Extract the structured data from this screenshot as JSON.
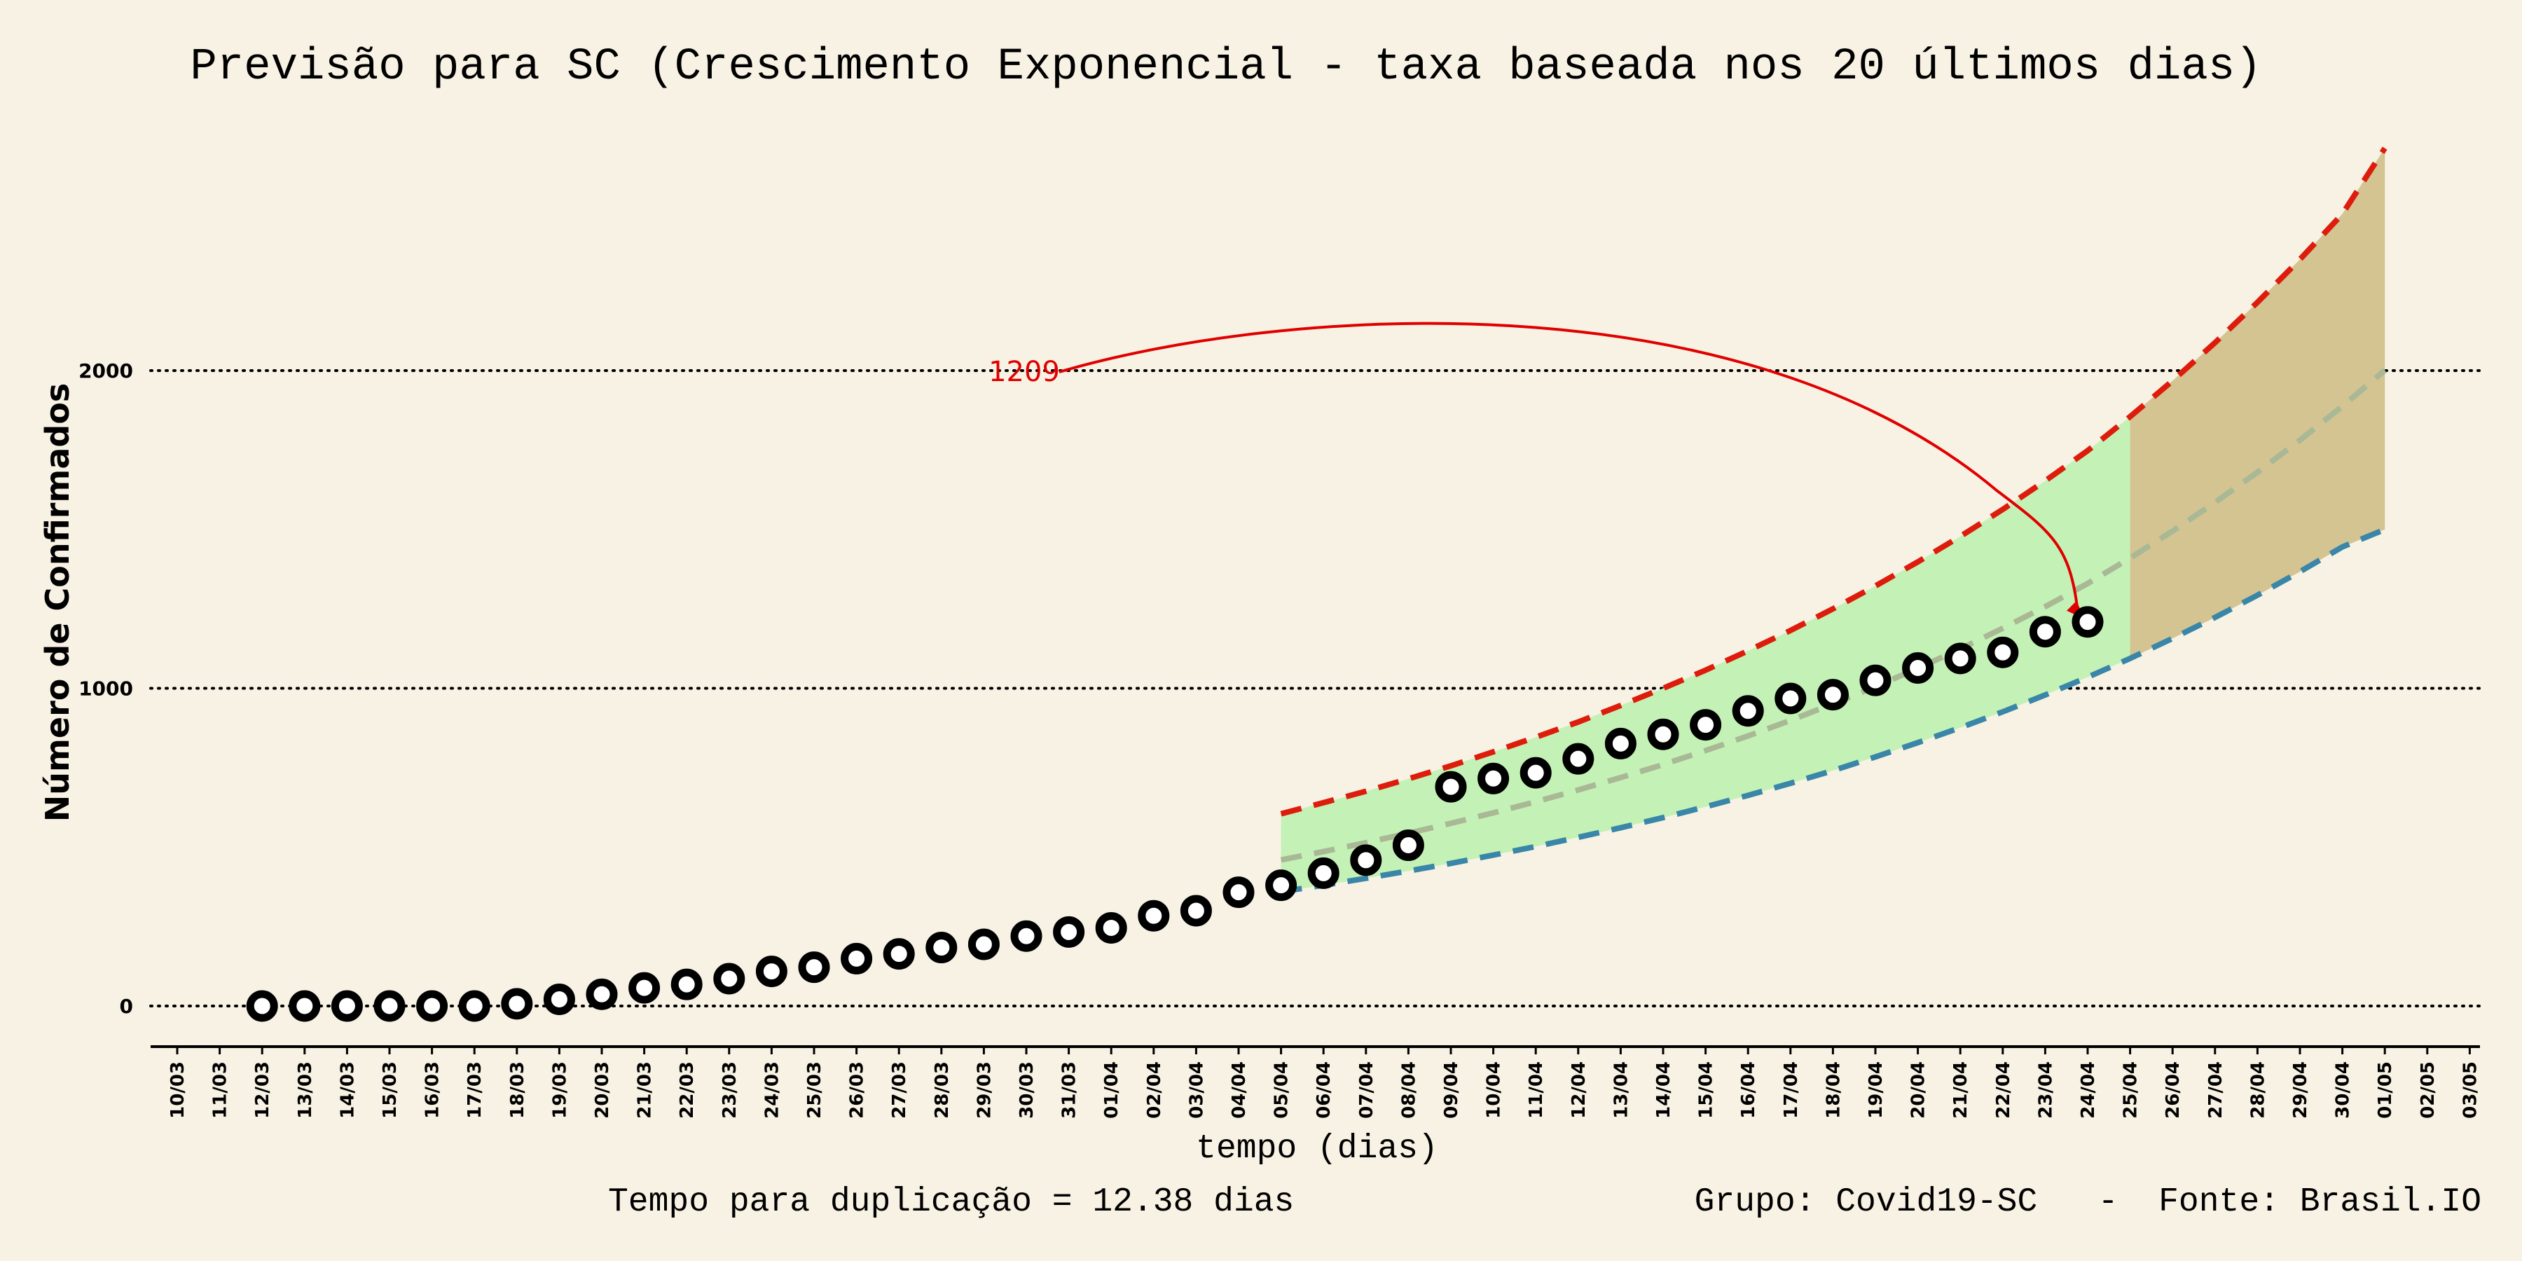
{
  "chart_data": {
    "type": "line",
    "title": "Previsão para SC (Crescimento Exponencial - taxa baseada nos 20 últimos dias)",
    "xlabel": "tempo (dias)",
    "ylabel": "Número de Confirmados",
    "footer_left": "Tempo para duplicação = 12.38 dias",
    "footer_right": "Grupo: Covid19-SC   -  Fonte: Brasil.IO",
    "x_tick_labels": [
      "10/03",
      "11/03",
      "12/03",
      "13/03",
      "14/03",
      "15/03",
      "16/03",
      "17/03",
      "18/03",
      "19/03",
      "20/03",
      "21/03",
      "22/03",
      "23/03",
      "24/03",
      "25/03",
      "26/03",
      "27/03",
      "28/03",
      "29/03",
      "30/03",
      "31/03",
      "01/04",
      "02/04",
      "03/04",
      "04/04",
      "05/04",
      "06/04",
      "07/04",
      "08/04",
      "09/04",
      "10/04",
      "11/04",
      "12/04",
      "13/04",
      "14/04",
      "15/04",
      "16/04",
      "17/04",
      "18/04",
      "19/04",
      "20/04",
      "21/04",
      "22/04",
      "23/04",
      "24/04",
      "25/04",
      "26/04",
      "27/04",
      "28/04",
      "29/04",
      "30/04",
      "01/05",
      "02/05",
      "03/05"
    ],
    "y_ticks": [
      0,
      1000,
      2000
    ],
    "ylim": [
      -130,
      2700
    ],
    "grid": "horizontal dotted",
    "confirmed": {
      "dates": [
        "12/03",
        "13/03",
        "14/03",
        "15/03",
        "16/03",
        "17/03",
        "18/03",
        "19/03",
        "20/03",
        "21/03",
        "22/03",
        "23/03",
        "24/03",
        "25/03",
        "26/03",
        "27/03",
        "28/03",
        "29/03",
        "30/03",
        "31/03",
        "01/04",
        "02/04",
        "03/04",
        "04/04",
        "05/04",
        "06/04",
        "07/04",
        "08/04",
        "09/04",
        "10/04",
        "11/04",
        "12/04",
        "13/04",
        "14/04",
        "15/04",
        "16/04",
        "17/04",
        "18/04",
        "19/04",
        "20/04",
        "21/04",
        "22/04",
        "23/04",
        "24/04"
      ],
      "values": [
        0,
        0,
        0,
        0,
        0,
        0,
        7,
        21,
        37,
        57,
        68,
        86,
        109,
        122,
        149,
        164,
        184,
        194,
        220,
        233,
        246,
        284,
        300,
        358,
        380,
        418,
        459,
        506,
        690,
        716,
        734,
        778,
        826,
        855,
        885,
        929,
        968,
        980,
        1025,
        1064,
        1094,
        1113,
        1178,
        1209
      ]
    },
    "forecast": {
      "dates": [
        "05/04",
        "06/04",
        "07/04",
        "08/04",
        "09/04",
        "10/04",
        "11/04",
        "12/04",
        "13/04",
        "14/04",
        "15/04",
        "16/04",
        "17/04",
        "18/04",
        "19/04",
        "20/04",
        "21/04",
        "22/04",
        "23/04",
        "24/04",
        "25/04",
        "26/04",
        "27/04",
        "28/04",
        "29/04",
        "30/04",
        "01/05"
      ],
      "central": [
        460,
        486,
        514,
        544,
        575,
        608,
        643,
        680,
        719,
        760,
        804,
        850,
        899,
        951,
        1005,
        1063,
        1124,
        1189,
        1257,
        1330,
        1410,
        1495,
        1585,
        1680,
        1781,
        1888,
        2001
      ],
      "upper": [
        605,
        640,
        676,
        715,
        756,
        800,
        846,
        894,
        946,
        1000,
        1057,
        1118,
        1182,
        1250,
        1322,
        1398,
        1478,
        1563,
        1653,
        1748,
        1855,
        1968,
        2088,
        2215,
        2350,
        2493,
        2700
      ],
      "lower": [
        360,
        380,
        402,
        425,
        449,
        475,
        502,
        531,
        561,
        593,
        627,
        663,
        701,
        741,
        784,
        829,
        876,
        926,
        979,
        1035,
        1094,
        1157,
        1223,
        1293,
        1367,
        1445,
        1500
      ],
      "band_split_date": "25/04"
    },
    "annotation": {
      "text": "1209",
      "date": "24/04",
      "value": 1209
    },
    "colors": {
      "background": "#f8f2e4",
      "upper_line": "#dd1c0c",
      "lower_line": "#3a86a8",
      "central_line": "#a9b895",
      "band_recent": "#c4f2b6",
      "band_future": "#d3c492",
      "annotation": "#e00000",
      "marker": "#000000"
    }
  }
}
